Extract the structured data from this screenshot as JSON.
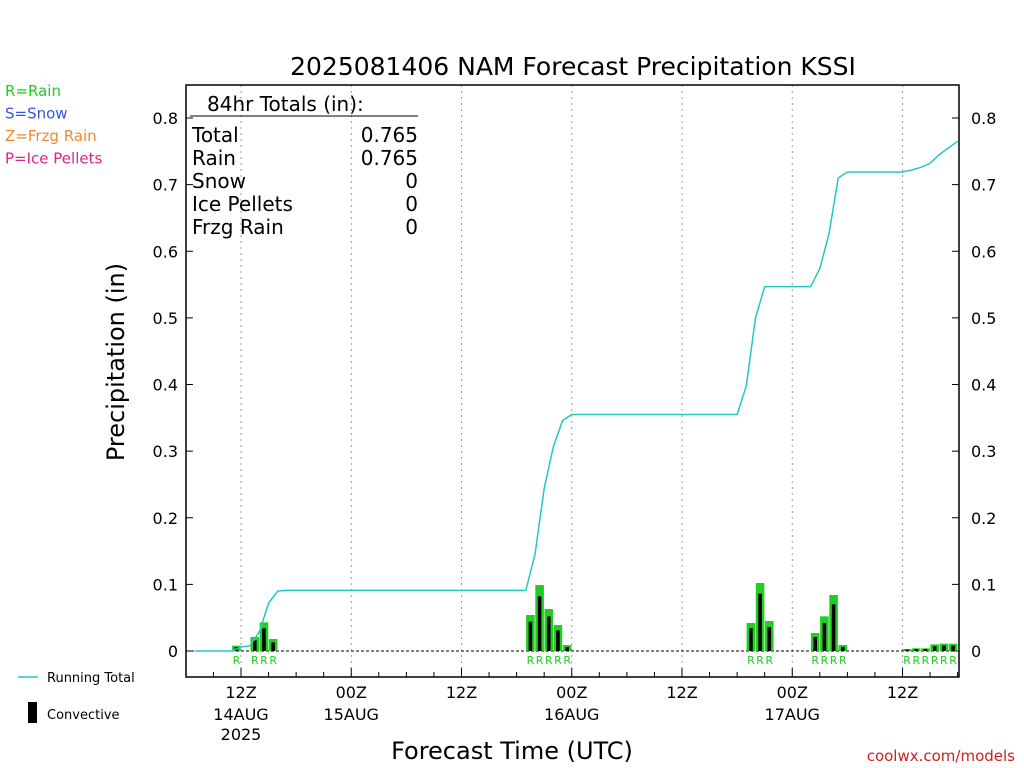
{
  "colors": {
    "rain": "#22cc22",
    "snow": "#3355dd",
    "frzg_rain": "#ee8833",
    "ice_pellets": "#dd2288",
    "running_total": "#22c8c8",
    "convective": "#000000",
    "credit": "#cc2222"
  },
  "chart_data": {
    "type": "bar",
    "title": "2025081406 NAM Forecast Precipitation KSSI",
    "xlabel": "Forecast Time (UTC)",
    "ylabel": "Precipitation (in)",
    "ylim": [
      0,
      0.85
    ],
    "yticks": [
      "0",
      "0.1",
      "0.2",
      "0.3",
      "0.4",
      "0.5",
      "0.6",
      "0.7",
      "0.8"
    ],
    "x_unit": "forecast hour",
    "xlim": [
      0,
      84
    ],
    "x_ticks": [
      {
        "hour": 6,
        "label": "12Z",
        "sub": "14AUG",
        "sub2": "2025"
      },
      {
        "hour": 18,
        "label": "00Z",
        "sub": "15AUG",
        "sub2": ""
      },
      {
        "hour": 30,
        "label": "12Z",
        "sub": "",
        "sub2": ""
      },
      {
        "hour": 42,
        "label": "00Z",
        "sub": "16AUG",
        "sub2": ""
      },
      {
        "hour": 54,
        "label": "12Z",
        "sub": "",
        "sub2": ""
      },
      {
        "hour": 66,
        "label": "00Z",
        "sub": "17AUG",
        "sub2": ""
      },
      {
        "hour": 78,
        "label": "12Z",
        "sub": "",
        "sub2": ""
      }
    ],
    "legend": [
      {
        "label": "R=Rain",
        "color_key": "rain"
      },
      {
        "label": "S=Snow",
        "color_key": "snow"
      },
      {
        "label": "Z=Frzg Rain",
        "color_key": "frzg_rain"
      },
      {
        "label": "P=Ice Pellets",
        "color_key": "ice_pellets"
      }
    ],
    "legend_bottom": {
      "running_total": "Running Total",
      "convective": "Convective"
    },
    "totals": {
      "heading": "84hr Totals (in):",
      "rows": [
        {
          "label": "Total",
          "value": "0.765"
        },
        {
          "label": "Rain",
          "value": "0.765"
        },
        {
          "label": "Snow",
          "value": "0"
        },
        {
          "label": "Ice Pellets",
          "value": "0"
        },
        {
          "label": "Frzg Rain",
          "value": "0"
        }
      ]
    },
    "bars": [
      {
        "hour": 6,
        "total": 0.008,
        "convective": 0.006,
        "ptype": "R"
      },
      {
        "hour": 8,
        "total": 0.021,
        "convective": 0.016,
        "ptype": "R"
      },
      {
        "hour": 9,
        "total": 0.043,
        "convective": 0.034,
        "ptype": "R"
      },
      {
        "hour": 10,
        "total": 0.018,
        "convective": 0.013,
        "ptype": "R"
      },
      {
        "hour": 38,
        "total": 0.054,
        "convective": 0.044,
        "ptype": "R"
      },
      {
        "hour": 39,
        "total": 0.099,
        "convective": 0.082,
        "ptype": "R"
      },
      {
        "hour": 40,
        "total": 0.063,
        "convective": 0.052,
        "ptype": "R"
      },
      {
        "hour": 41,
        "total": 0.039,
        "convective": 0.031,
        "ptype": "R"
      },
      {
        "hour": 42,
        "total": 0.009,
        "convective": 0.006,
        "ptype": "R"
      },
      {
        "hour": 62,
        "total": 0.042,
        "convective": 0.034,
        "ptype": "R"
      },
      {
        "hour": 63,
        "total": 0.102,
        "convective": 0.086,
        "ptype": "R"
      },
      {
        "hour": 64,
        "total": 0.045,
        "convective": 0.036,
        "ptype": "R"
      },
      {
        "hour": 69,
        "total": 0.027,
        "convective": 0.021,
        "ptype": "R"
      },
      {
        "hour": 70,
        "total": 0.052,
        "convective": 0.042,
        "ptype": "R"
      },
      {
        "hour": 71,
        "total": 0.084,
        "convective": 0.07,
        "ptype": "R"
      },
      {
        "hour": 72,
        "total": 0.009,
        "convective": 0.006,
        "ptype": "R"
      },
      {
        "hour": 79,
        "total": 0.003,
        "convective": 0.002,
        "ptype": "R"
      },
      {
        "hour": 80,
        "total": 0.004,
        "convective": 0.003,
        "ptype": "R"
      },
      {
        "hour": 81,
        "total": 0.004,
        "convective": 0.003,
        "ptype": "R"
      },
      {
        "hour": 82,
        "total": 0.01,
        "convective": 0.007,
        "ptype": "R"
      },
      {
        "hour": 83,
        "total": 0.011,
        "convective": 0.008,
        "ptype": "R"
      },
      {
        "hour": 84,
        "total": 0.011,
        "convective": 0.008,
        "ptype": "R"
      }
    ],
    "running_total": {
      "name": "Running Total",
      "hours": [
        1,
        5,
        6,
        7,
        8,
        9,
        10,
        11,
        37,
        38,
        39,
        40,
        41,
        42,
        60,
        61,
        62,
        63,
        64,
        66,
        68,
        69,
        70,
        71,
        72,
        78,
        79,
        80,
        81,
        82,
        84
      ],
      "values": [
        0,
        0,
        0.006,
        0.008,
        0.029,
        0.072,
        0.09,
        0.091,
        0.091,
        0.145,
        0.244,
        0.307,
        0.346,
        0.355,
        0.355,
        0.398,
        0.5,
        0.547,
        0.547,
        0.547,
        0.547,
        0.574,
        0.626,
        0.71,
        0.719,
        0.719,
        0.722,
        0.726,
        0.732,
        0.745,
        0.765
      ]
    }
  },
  "credit": "coolwx.com/models"
}
